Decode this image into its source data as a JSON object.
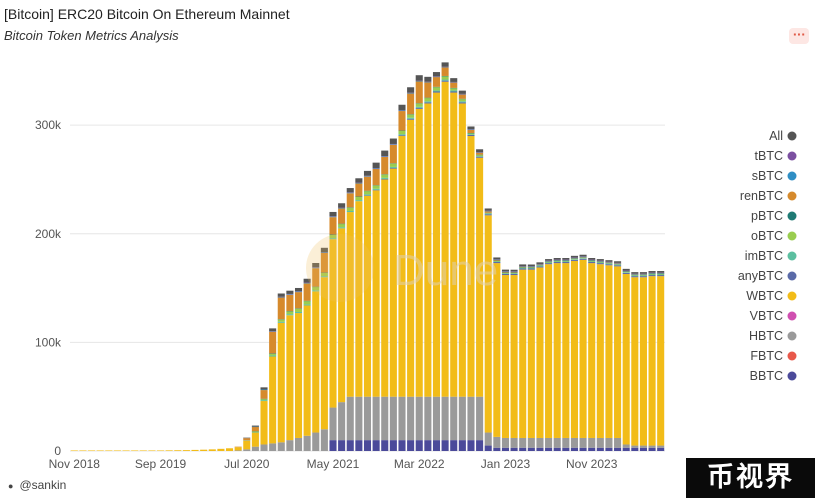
{
  "header": {
    "title": "[Bitcoin] ERC20 Bitcoin On Ethereum Mainnet",
    "subtitle": "Bitcoin Token Metrics Analysis",
    "more_label": "···"
  },
  "author": {
    "name": "@sankin"
  },
  "watermark": "Dune",
  "brand_logo": "币视界",
  "chart_data": {
    "type": "bar",
    "stacked": true,
    "ylim": [
      0,
      360000
    ],
    "yticks": [
      0,
      100000,
      200000,
      300000
    ],
    "ytick_labels": [
      "0",
      "100k",
      "200k",
      "300k"
    ],
    "xtick_labels": [
      "Nov 2018",
      "Sep 2019",
      "Jul 2020",
      "May 2021",
      "Mar 2022",
      "Jan 2023",
      "Nov 2023"
    ],
    "xtick_index": [
      0,
      10,
      20,
      30,
      40,
      50,
      60
    ],
    "grid": true,
    "legend_position": "right",
    "legend": [
      "All",
      "tBTC",
      "sBTC",
      "renBTC",
      "pBTC",
      "oBTC",
      "imBTC",
      "anyBTC",
      "WBTC",
      "VBTC",
      "HBTC",
      "FBTC",
      "BBTC"
    ],
    "colors": {
      "All": "#555555",
      "tBTC": "#7b4fa0",
      "sBTC": "#2f8ec4",
      "renBTC": "#d68a2c",
      "pBTC": "#1f7a74",
      "oBTC": "#9acd4f",
      "imBTC": "#5cbfa0",
      "anyBTC": "#5a6aa8",
      "WBTC": "#f2bc18",
      "VBTC": "#d04fb0",
      "HBTC": "#9a9a9a",
      "FBTC": "#e8584a",
      "BBTC": "#4b4a9a"
    },
    "categories": [
      "Nov 2018",
      "Dec 2018",
      "Jan 2019",
      "Feb 2019",
      "Mar 2019",
      "Apr 2019",
      "May 2019",
      "Jun 2019",
      "Jul 2019",
      "Aug 2019",
      "Sep 2019",
      "Oct 2019",
      "Nov 2019",
      "Dec 2019",
      "Jan 2020",
      "Feb 2020",
      "Mar 2020",
      "Apr 2020",
      "May 2020",
      "Jun 2020",
      "Jul 2020",
      "Aug 2020",
      "Sep 2020",
      "Oct 2020",
      "Nov 2020",
      "Dec 2020",
      "Jan 2021",
      "Feb 2021",
      "Mar 2021",
      "Apr 2021",
      "May 2021",
      "Jun 2021",
      "Jul 2021",
      "Aug 2021",
      "Sep 2021",
      "Oct 2021",
      "Nov 2021",
      "Dec 2021",
      "Jan 2022",
      "Feb 2022",
      "Mar 2022",
      "Apr 2022",
      "May 2022",
      "Jun 2022",
      "Jul 2022",
      "Aug 2022",
      "Sep 2022",
      "Oct 2022",
      "Nov 2022",
      "Dec 2022",
      "Jan 2023",
      "Feb 2023",
      "Mar 2023",
      "Apr 2023",
      "May 2023",
      "Jun 2023",
      "Jul 2023",
      "Aug 2023",
      "Sep 2023",
      "Oct 2023",
      "Nov 2023",
      "Dec 2023",
      "Jan 2024",
      "Feb 2024",
      "Mar 2024",
      "Apr 2024",
      "May 2024",
      "Jun 2024",
      "Jul 2024"
    ],
    "series": [
      {
        "name": "BBTC",
        "values": [
          0,
          0,
          0,
          0,
          0,
          0,
          0,
          0,
          0,
          0,
          0,
          0,
          0,
          0,
          0,
          0,
          0,
          0,
          0,
          0,
          0,
          0,
          0,
          0,
          0,
          0,
          0,
          0,
          0,
          0,
          10000,
          10000,
          10000,
          10000,
          10000,
          10000,
          10000,
          10000,
          10000,
          10000,
          10000,
          10000,
          10000,
          10000,
          10000,
          10000,
          10000,
          10000,
          5000,
          3000,
          3000,
          3000,
          3000,
          3000,
          3000,
          3000,
          3000,
          3000,
          3000,
          3000,
          3000,
          3000,
          3000,
          3000,
          3000,
          3000,
          3000,
          3000,
          3000
        ]
      },
      {
        "name": "HBTC",
        "values": [
          0,
          0,
          0,
          0,
          0,
          0,
          0,
          0,
          0,
          0,
          0,
          0,
          0,
          0,
          0,
          0,
          0,
          0,
          0,
          500,
          1500,
          4000,
          6000,
          7000,
          8000,
          10000,
          12000,
          14000,
          17000,
          20000,
          30000,
          35000,
          40000,
          40000,
          40000,
          40000,
          40000,
          40000,
          40000,
          40000,
          40000,
          40000,
          40000,
          40000,
          40000,
          40000,
          40000,
          40000,
          12000,
          10000,
          9000,
          9000,
          9000,
          9000,
          9000,
          9000,
          9000,
          9000,
          9000,
          9000,
          9000,
          9000,
          9000,
          9000,
          3000,
          2000,
          2000,
          2000,
          2000
        ]
      },
      {
        "name": "WBTC",
        "values": [
          500,
          500,
          500,
          500,
          500,
          500,
          500,
          500,
          500,
          500,
          500,
          600,
          700,
          800,
          1000,
          1200,
          1500,
          2000,
          2500,
          3000,
          8000,
          13000,
          40000,
          80000,
          110000,
          115000,
          115000,
          120000,
          130000,
          140000,
          155000,
          160000,
          170000,
          180000,
          185000,
          190000,
          200000,
          210000,
          240000,
          255000,
          265000,
          270000,
          280000,
          290000,
          280000,
          270000,
          240000,
          220000,
          200000,
          160000,
          150000,
          150000,
          155000,
          155000,
          157000,
          160000,
          161000,
          161000,
          163000,
          164000,
          161000,
          160000,
          159000,
          158000,
          157000,
          155000,
          155000,
          156000,
          156000
        ]
      },
      {
        "name": "anyBTC",
        "values": [
          0,
          0,
          0,
          0,
          0,
          0,
          0,
          0,
          0,
          0,
          0,
          0,
          0,
          0,
          0,
          0,
          0,
          0,
          0,
          0,
          0,
          0,
          0,
          0,
          0,
          0,
          0,
          0,
          0,
          0,
          0,
          0,
          0,
          0,
          300,
          400,
          500,
          600,
          700,
          800,
          900,
          1000,
          1000,
          1000,
          1000,
          1000,
          1000,
          1000,
          1000,
          1000,
          1000,
          1000,
          1000,
          1000,
          1000,
          1000,
          1000,
          1000,
          1000,
          1000,
          1000,
          1000,
          1000,
          1000,
          1000,
          1000,
          1000,
          1000,
          1000
        ]
      },
      {
        "name": "imBTC",
        "values": [
          0,
          0,
          0,
          0,
          0,
          0,
          0,
          0,
          0,
          0,
          0,
          0,
          0,
          0,
          0,
          0,
          0,
          0,
          0,
          0,
          300,
          500,
          800,
          1000,
          1000,
          1000,
          1000,
          1000,
          1000,
          1000,
          1000,
          1000,
          1000,
          1000,
          1000,
          1000,
          1000,
          1000,
          1000,
          1000,
          1000,
          1000,
          1000,
          1000,
          1000,
          1000,
          500,
          500,
          500,
          500,
          500,
          500,
          500,
          500,
          500,
          500,
          500,
          500,
          500,
          500,
          500,
          500,
          500,
          500,
          500,
          500,
          500,
          500,
          500
        ]
      },
      {
        "name": "oBTC",
        "values": [
          0,
          0,
          0,
          0,
          0,
          0,
          0,
          0,
          0,
          0,
          0,
          0,
          0,
          0,
          0,
          0,
          0,
          0,
          0,
          0,
          0,
          500,
          1000,
          1500,
          2000,
          2500,
          3000,
          3000,
          3000,
          3000,
          3000,
          3000,
          3000,
          3000,
          3000,
          3000,
          3000,
          3000,
          3000,
          3000,
          3000,
          3000,
          3000,
          3000,
          2000,
          2000,
          1000,
          1000,
          500,
          500,
          500,
          500,
          500,
          500,
          500,
          500,
          500,
          500,
          500,
          500,
          500,
          500,
          500,
          500,
          500,
          500,
          500,
          500,
          500
        ]
      },
      {
        "name": "pBTC",
        "values": [
          0,
          0,
          0,
          0,
          0,
          0,
          0,
          0,
          0,
          0,
          0,
          0,
          0,
          0,
          0,
          0,
          0,
          0,
          0,
          0,
          0,
          200,
          300,
          300,
          300,
          300,
          300,
          300,
          300,
          300,
          300,
          300,
          300,
          300,
          300,
          300,
          300,
          300,
          300,
          300,
          300,
          300,
          300,
          300,
          300,
          300,
          300,
          300,
          300,
          300,
          300,
          300,
          300,
          300,
          300,
          300,
          300,
          300,
          300,
          300,
          300,
          300,
          300,
          300,
          300,
          300,
          300,
          300,
          300
        ]
      },
      {
        "name": "renBTC",
        "values": [
          0,
          0,
          0,
          0,
          0,
          0,
          0,
          0,
          0,
          0,
          0,
          0,
          0,
          0,
          0,
          0,
          0,
          0,
          0,
          500,
          2000,
          4000,
          8000,
          20000,
          20000,
          15000,
          15000,
          16000,
          17000,
          18000,
          16000,
          14000,
          13000,
          12000,
          13000,
          15000,
          16000,
          17000,
          18000,
          19000,
          20000,
          14000,
          9000,
          8000,
          5000,
          4000,
          3000,
          2000,
          1500,
          1000,
          800,
          700,
          600,
          500,
          500,
          500,
          500,
          500,
          500,
          500,
          500,
          500,
          500,
          500,
          500,
          500,
          500,
          500,
          500
        ]
      },
      {
        "name": "sBTC",
        "values": [
          0,
          0,
          0,
          0,
          0,
          0,
          0,
          0,
          0,
          0,
          0,
          0,
          0,
          0,
          0,
          0,
          0,
          0,
          0,
          0,
          0,
          200,
          500,
          500,
          500,
          500,
          500,
          500,
          500,
          500,
          500,
          500,
          500,
          500,
          500,
          500,
          500,
          500,
          500,
          500,
          500,
          400,
          300,
          200,
          200,
          200,
          200,
          200,
          200,
          100,
          100,
          100,
          100,
          100,
          100,
          100,
          100,
          100,
          100,
          100,
          100,
          100,
          100,
          100,
          100,
          100,
          100,
          100,
          100
        ]
      },
      {
        "name": "tBTC",
        "values": [
          0,
          0,
          0,
          0,
          0,
          0,
          0,
          0,
          0,
          0,
          0,
          0,
          0,
          0,
          0,
          0,
          0,
          0,
          0,
          0,
          0,
          0,
          0,
          100,
          200,
          300,
          300,
          300,
          300,
          300,
          300,
          300,
          300,
          300,
          300,
          300,
          300,
          300,
          300,
          300,
          300,
          300,
          300,
          300,
          300,
          300,
          300,
          300,
          300,
          300,
          300,
          300,
          300,
          300,
          300,
          300,
          300,
          300,
          300,
          300,
          300,
          300,
          300,
          300,
          300,
          300,
          300,
          300,
          300
        ]
      },
      {
        "name": "All",
        "values": [
          0,
          0,
          0,
          0,
          0,
          0,
          0,
          0,
          0,
          0,
          0,
          0,
          0,
          0,
          0,
          0,
          0,
          0,
          0,
          0,
          500,
          1000,
          2000,
          2500,
          3000,
          3000,
          3000,
          3500,
          4000,
          4000,
          4000,
          4000,
          4000,
          4000,
          4500,
          5000,
          5000,
          5000,
          5000,
          5000,
          5000,
          4500,
          4000,
          4000,
          3500,
          3000,
          2500,
          2500,
          2000,
          1500,
          1500,
          1500,
          1500,
          1500,
          1500,
          1500,
          1500,
          1500,
          1500,
          1500,
          1500,
          1500,
          1500,
          1500,
          1500,
          1500,
          1500,
          1500,
          1500
        ]
      }
    ]
  }
}
